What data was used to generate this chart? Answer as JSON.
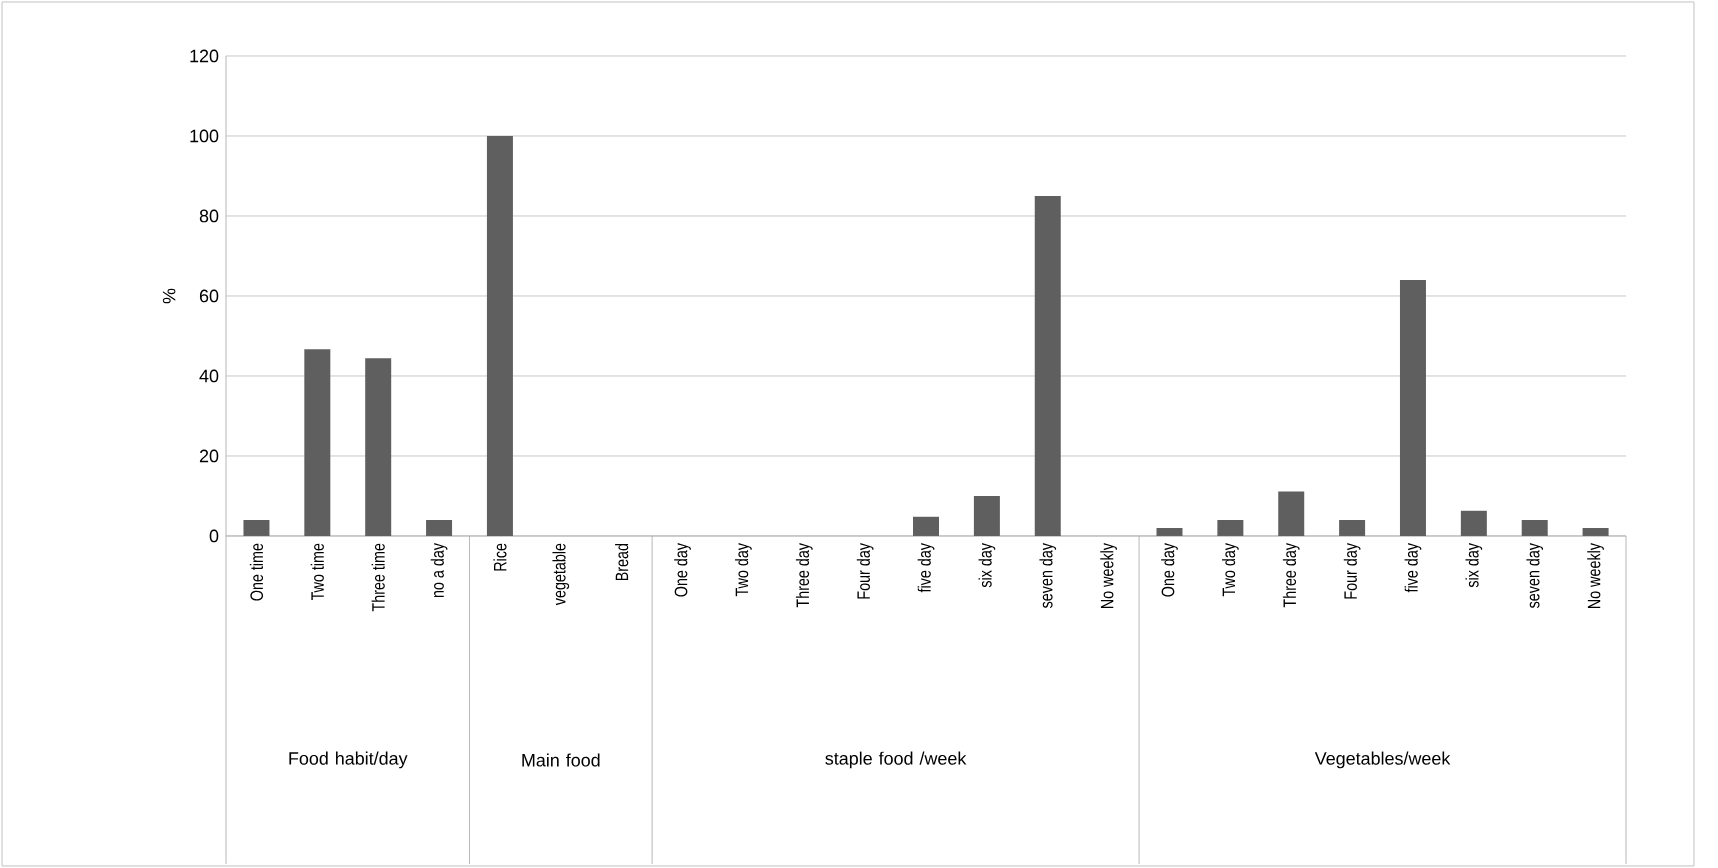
{
  "chart_data": {
    "type": "bar",
    "ylabel": "%",
    "categories": [
      "One time",
      "Two time",
      "Three time",
      "no a day",
      "Rice",
      "vegetable",
      "Bread",
      "One day",
      "Two day",
      "Three day",
      "Four day",
      "five day",
      "six day",
      "seven day",
      "No weekly",
      "One day",
      "Two day",
      "Three day",
      "Four day",
      "five day",
      "six day",
      "seven day",
      "No weekly"
    ],
    "values": [
      4,
      46.7,
      44.4,
      4,
      100,
      0,
      0,
      0,
      0,
      0,
      0,
      4.8,
      10,
      85,
      0,
      2,
      4,
      11.1,
      4,
      64,
      6.3,
      4,
      2
    ],
    "color": "#5f5f5f",
    "ylim": [
      0,
      120
    ],
    "yticks": [
      0,
      20,
      40,
      60,
      80,
      100,
      120
    ],
    "grid": "y",
    "annotations": [
      "Food habit/day",
      "Main food",
      "staple food /week",
      "Vegetables/week"
    ]
  }
}
